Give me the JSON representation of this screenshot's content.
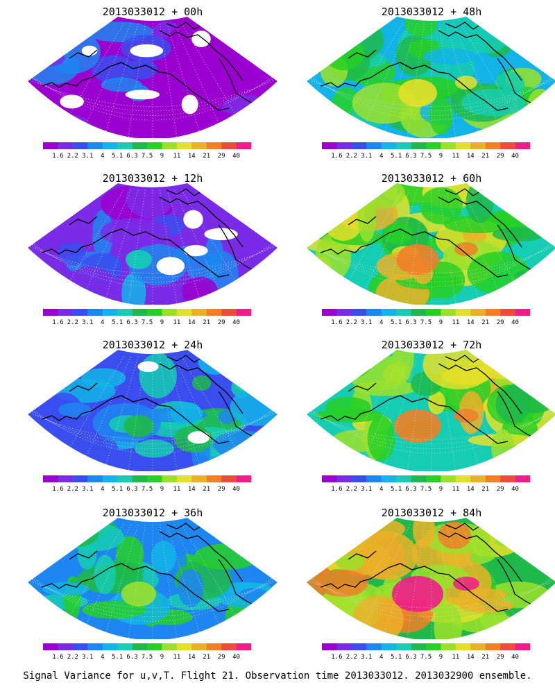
{
  "panels": [
    {
      "title": "2013033012 + 00h",
      "intensity": 0
    },
    {
      "title": "2013033012 + 48h",
      "intensity": 4
    },
    {
      "title": "2013033012 + 12h",
      "intensity": 1
    },
    {
      "title": "2013033012 + 60h",
      "intensity": 5
    },
    {
      "title": "2013033012 + 24h",
      "intensity": 2
    },
    {
      "title": "2013033012 + 72h",
      "intensity": 6
    },
    {
      "title": "2013033012 + 36h",
      "intensity": 3
    },
    {
      "title": "2013033012 + 84h",
      "intensity": 7
    }
  ],
  "colorbar": {
    "labels": [
      "1.6",
      "2.2",
      "3.1",
      "4",
      "5.1",
      "6.3",
      "7.5",
      "9",
      "11",
      "14",
      "21",
      "29",
      "40"
    ],
    "colors": [
      "#9a00cf",
      "#7a2be6",
      "#3a4ef0",
      "#1e86f0",
      "#12b4e8",
      "#15cdb2",
      "#1fb84a",
      "#26d026",
      "#9ae02a",
      "#e4e028",
      "#eab128",
      "#f07f28",
      "#f04a3a",
      "#f01c8a"
    ]
  },
  "footer": "Signal Variance for u,v,T. Flight 21. Observation time 2013033012. 2013032900 ensemble."
}
